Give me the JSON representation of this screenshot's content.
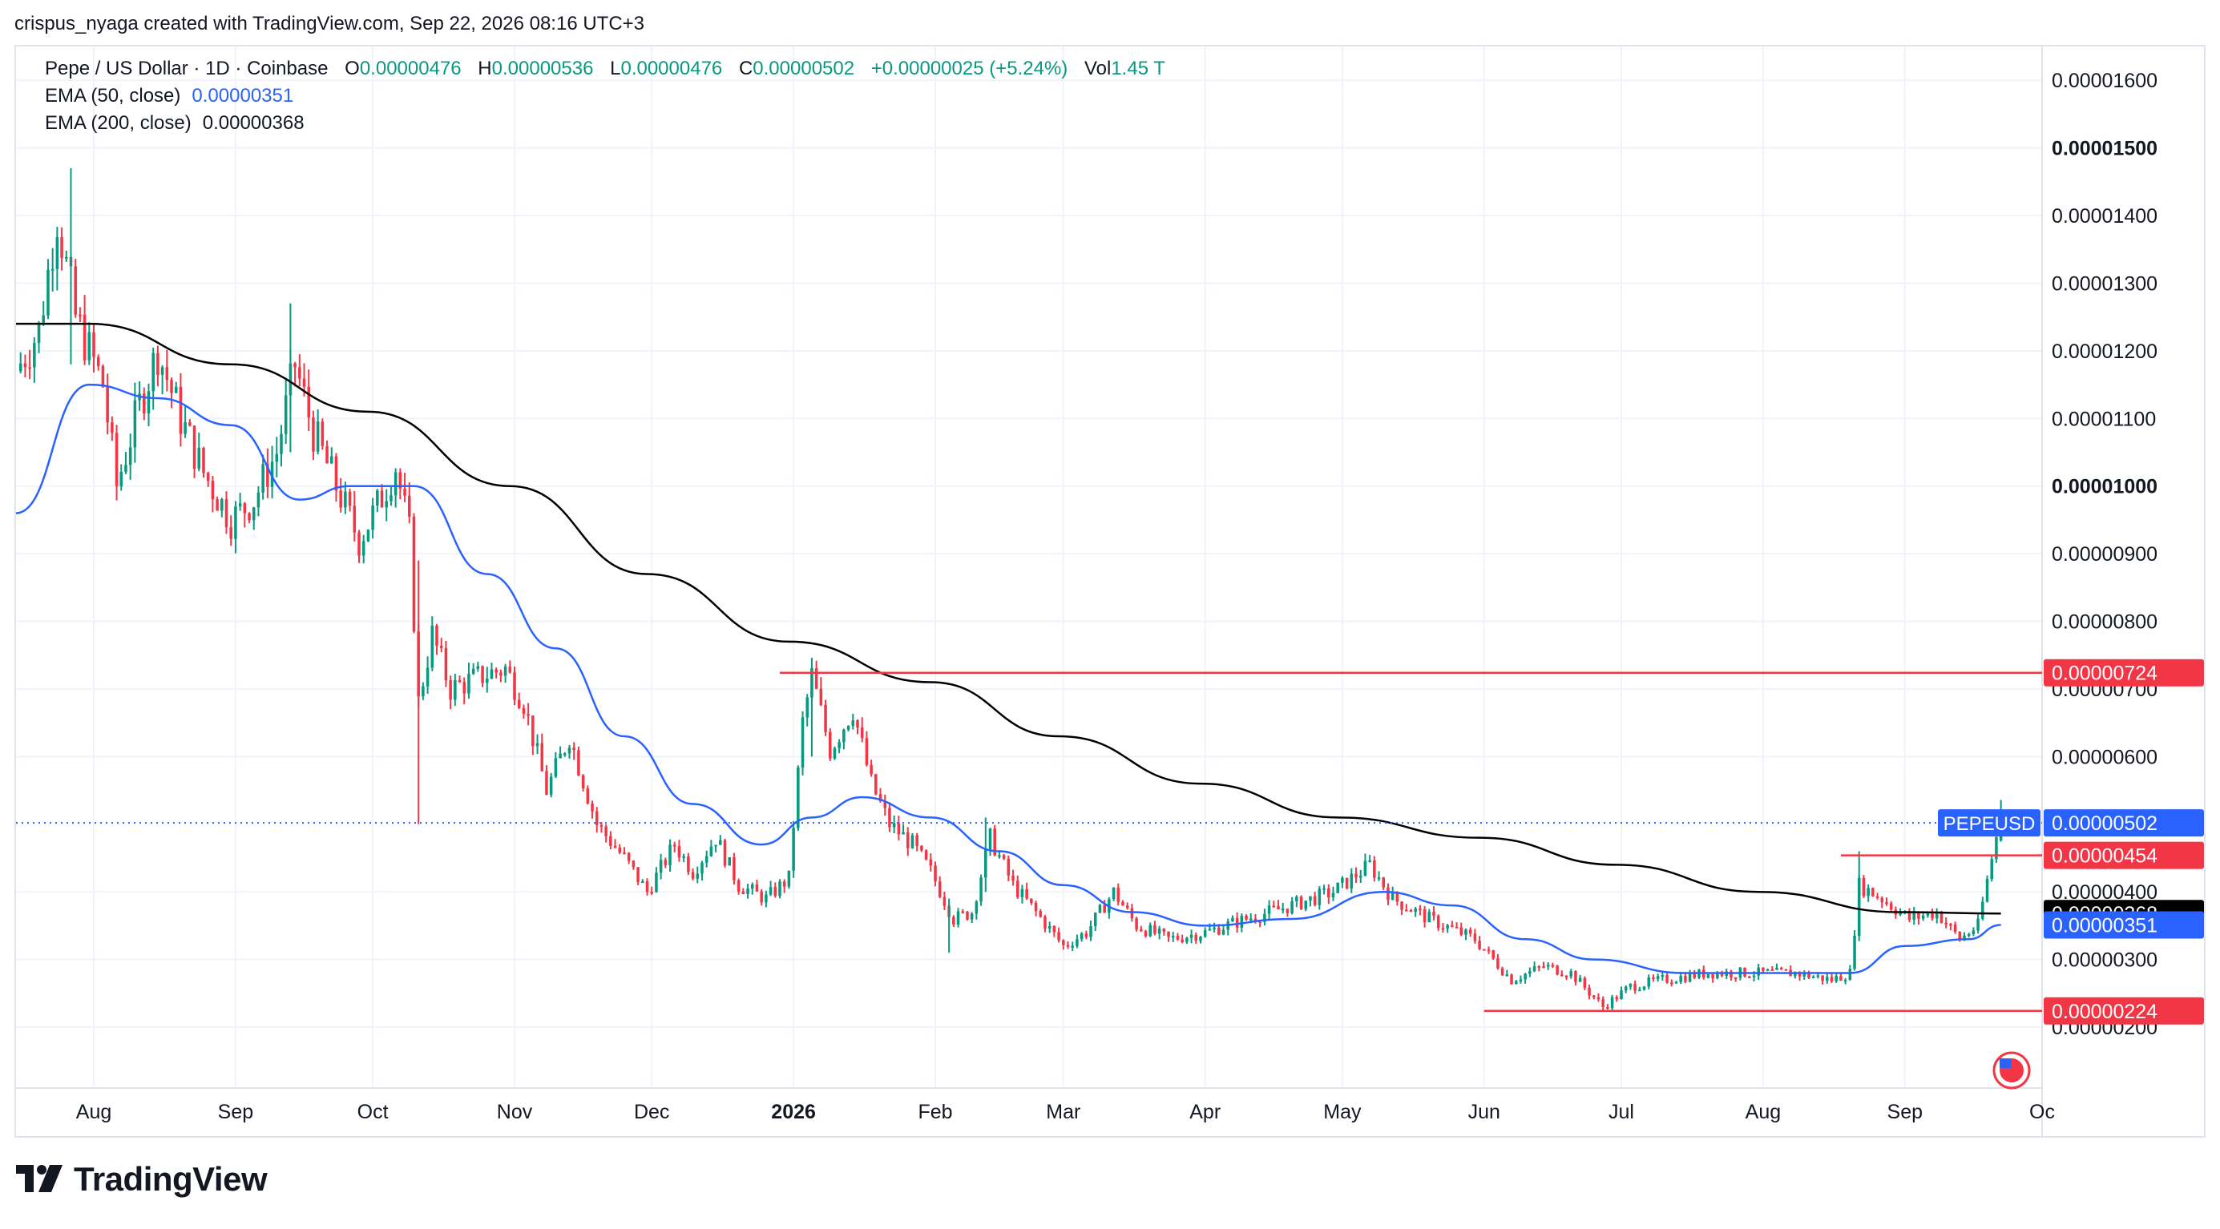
{
  "header": {
    "caption": "crispus_nyaga created with TradingView.com, Sep 22, 2026 08:16 UTC+3"
  },
  "legend": {
    "symbol": "Pepe / US Dollar · 1D · Coinbase",
    "o_label": "O",
    "o_value": "0.00000476",
    "h_label": "H",
    "h_value": "0.00000536",
    "l_label": "L",
    "l_value": "0.00000476",
    "c_label": "C",
    "c_value": "0.00000502",
    "change": "+0.00000025 (+5.24%)",
    "vol_label": "Vol",
    "vol_value": "1.45 T",
    "ema50_label": "EMA (50, close)",
    "ema50_value": "0.00000351",
    "ema200_label": "EMA (200, close)",
    "ema200_value": "0.00000368"
  },
  "footer": {
    "logo_text": "TradingView",
    "logo_icon": "tradingview-logo-icon",
    "flag_icon": "us-flag-icon"
  },
  "colors": {
    "up": "#089981",
    "down": "#f23645",
    "ema50": "#2962ff",
    "ema200": "#000000",
    "level_line": "#f23645",
    "grid": "#f0f3fa",
    "price_line": "#2962ff"
  },
  "chart_data": {
    "type": "candlestick",
    "symbol": "PEPEUSD",
    "x_range": [
      "2025-07-15",
      "2026-10-01"
    ],
    "y_range": [
      1.1e-06,
      1.65e-05
    ],
    "grid": true,
    "y_ticks": [
      {
        "value": 1.6e-05,
        "label": "0.00001600",
        "bold": false
      },
      {
        "value": 1.5e-05,
        "label": "0.00001500",
        "bold": true
      },
      {
        "value": 1.4e-05,
        "label": "0.00001400",
        "bold": false
      },
      {
        "value": 1.3e-05,
        "label": "0.00001300",
        "bold": false
      },
      {
        "value": 1.2e-05,
        "label": "0.00001200",
        "bold": false
      },
      {
        "value": 1.1e-05,
        "label": "0.00001100",
        "bold": false
      },
      {
        "value": 1e-05,
        "label": "0.00001000",
        "bold": true
      },
      {
        "value": 9e-06,
        "label": "0.00000900",
        "bold": false
      },
      {
        "value": 8e-06,
        "label": "0.00000800",
        "bold": false
      },
      {
        "value": 7e-06,
        "label": "0.00000700",
        "bold": false
      },
      {
        "value": 6e-06,
        "label": "0.00000600",
        "bold": false
      },
      {
        "value": 4e-06,
        "label": "0.00000400",
        "bold": false
      },
      {
        "value": 3e-06,
        "label": "0.00000300",
        "bold": false
      },
      {
        "value": 2e-06,
        "label": "0.00000200",
        "bold": false
      }
    ],
    "x_ticks": [
      {
        "date": "2025-08-01",
        "label": "Aug",
        "bold": false
      },
      {
        "date": "2025-09-01",
        "label": "Sep",
        "bold": false
      },
      {
        "date": "2025-10-01",
        "label": "Oct",
        "bold": false
      },
      {
        "date": "2025-11-01",
        "label": "Nov",
        "bold": false
      },
      {
        "date": "2025-12-01",
        "label": "Dec",
        "bold": false
      },
      {
        "date": "2026-01-01",
        "label": "2026",
        "bold": true
      },
      {
        "date": "2026-02-01",
        "label": "Feb",
        "bold": false
      },
      {
        "date": "2026-03-01",
        "label": "Mar",
        "bold": false
      },
      {
        "date": "2026-04-01",
        "label": "Apr",
        "bold": false
      },
      {
        "date": "2026-05-01",
        "label": "May",
        "bold": false
      },
      {
        "date": "2026-06-01",
        "label": "Jun",
        "bold": false
      },
      {
        "date": "2026-07-01",
        "label": "Jul",
        "bold": false
      },
      {
        "date": "2026-08-01",
        "label": "Aug",
        "bold": false
      },
      {
        "date": "2026-09-01",
        "label": "Sep",
        "bold": false
      },
      {
        "date": "2026-10-01",
        "label": "Oc",
        "bold": false
      }
    ],
    "close_path": [
      [
        "2025-07-15",
        1.17e-05
      ],
      [
        "2025-07-20",
        1.23e-05
      ],
      [
        "2025-07-24",
        1.4e-05
      ],
      [
        "2025-07-28",
        1.25e-05
      ],
      [
        "2025-08-03",
        1.15e-05
      ],
      [
        "2025-08-06",
        1e-05
      ],
      [
        "2025-08-11",
        1.12e-05
      ],
      [
        "2025-08-15",
        1.2e-05
      ],
      [
        "2025-08-20",
        1.1e-05
      ],
      [
        "2025-08-25",
        1.02e-05
      ],
      [
        "2025-08-31",
        9.5e-06
      ],
      [
        "2025-09-05",
        9.8e-06
      ],
      [
        "2025-09-10",
        1.05e-05
      ],
      [
        "2025-09-14",
        1.18e-05
      ],
      [
        "2025-09-18",
        1.08e-05
      ],
      [
        "2025-09-23",
        1e-05
      ],
      [
        "2025-09-28",
        9.2e-06
      ],
      [
        "2025-10-02",
        9.7e-06
      ],
      [
        "2025-10-06",
        1.03e-05
      ],
      [
        "2025-10-09",
        9.3e-06
      ],
      [
        "2025-10-11",
        6.8e-06
      ],
      [
        "2025-10-14",
        7.8e-06
      ],
      [
        "2025-10-18",
        7e-06
      ],
      [
        "2025-10-25",
        7.2e-06
      ],
      [
        "2025-10-30",
        7.3e-06
      ],
      [
        "2025-11-03",
        6.8e-06
      ],
      [
        "2025-11-08",
        5.5e-06
      ],
      [
        "2025-11-13",
        6.3e-06
      ],
      [
        "2025-11-19",
        5e-06
      ],
      [
        "2025-11-25",
        4.5e-06
      ],
      [
        "2025-11-30",
        4e-06
      ],
      [
        "2025-12-06",
        4.7e-06
      ],
      [
        "2025-12-10",
        4.3e-06
      ],
      [
        "2025-12-15",
        4.8e-06
      ],
      [
        "2025-12-20",
        4.1e-06
      ],
      [
        "2025-12-26",
        3.9e-06
      ],
      [
        "2025-12-31",
        4.2e-06
      ],
      [
        "2026-01-01",
        5e-06
      ],
      [
        "2026-01-03",
        6.5e-06
      ],
      [
        "2026-01-05",
        7.2e-06
      ],
      [
        "2026-01-09",
        6.1e-06
      ],
      [
        "2026-01-14",
        6.7e-06
      ],
      [
        "2026-01-18",
        5.6e-06
      ],
      [
        "2026-01-22",
        5e-06
      ],
      [
        "2026-01-27",
        4.7e-06
      ],
      [
        "2026-01-31",
        4.3e-06
      ],
      [
        "2026-02-05",
        3.6e-06
      ],
      [
        "2026-02-09",
        3.7e-06
      ],
      [
        "2026-02-13",
        4.8e-06
      ],
      [
        "2026-02-18",
        4.1e-06
      ],
      [
        "2026-02-23",
        3.7e-06
      ],
      [
        "2026-03-01",
        3.2e-06
      ],
      [
        "2026-03-06",
        3.4e-06
      ],
      [
        "2026-03-12",
        4e-06
      ],
      [
        "2026-03-17",
        3.5e-06
      ],
      [
        "2026-03-24",
        3.3e-06
      ],
      [
        "2026-04-01",
        3.4e-06
      ],
      [
        "2026-04-10",
        3.6e-06
      ],
      [
        "2026-04-20",
        3.8e-06
      ],
      [
        "2026-04-29",
        4e-06
      ],
      [
        "2026-05-07",
        4.4e-06
      ],
      [
        "2026-05-12",
        3.9e-06
      ],
      [
        "2026-05-20",
        3.6e-06
      ],
      [
        "2026-05-30",
        3.3e-06
      ],
      [
        "2026-06-07",
        2.7e-06
      ],
      [
        "2026-06-14",
        2.9e-06
      ],
      [
        "2026-06-20",
        2.8e-06
      ],
      [
        "2026-06-27",
        2.3e-06
      ],
      [
        "2026-07-03",
        2.6e-06
      ],
      [
        "2026-07-10",
        2.7e-06
      ],
      [
        "2026-07-20",
        2.8e-06
      ],
      [
        "2026-07-30",
        2.8e-06
      ],
      [
        "2026-08-08",
        2.8e-06
      ],
      [
        "2026-08-16",
        2.7e-06
      ],
      [
        "2026-08-20",
        2.8e-06
      ],
      [
        "2026-08-22",
        4.1e-06
      ],
      [
        "2026-08-27",
        3.9e-06
      ],
      [
        "2026-09-02",
        3.6e-06
      ],
      [
        "2026-09-08",
        3.7e-06
      ],
      [
        "2026-09-13",
        3.3e-06
      ],
      [
        "2026-09-17",
        3.5e-06
      ],
      [
        "2026-09-20",
        4.5e-06
      ],
      [
        "2026-09-21",
        4.8e-06
      ],
      [
        "2026-09-22",
        5.02e-06
      ]
    ],
    "spikes": [
      {
        "date": "2025-07-27",
        "high": 1.47e-05,
        "low": 1.18e-05
      },
      {
        "date": "2025-09-13",
        "high": 1.27e-05,
        "low": 1.05e-05
      },
      {
        "date": "2025-10-11",
        "high": 8.9e-06,
        "low": 5e-06
      },
      {
        "date": "2026-01-05",
        "high": 7.3e-06,
        "low": 6e-06
      },
      {
        "date": "2026-02-12",
        "high": 5.1e-06,
        "low": 4e-06
      },
      {
        "date": "2026-02-04",
        "high": 3.9e-06,
        "low": 3.1e-06
      },
      {
        "date": "2026-08-22",
        "high": 4.6e-06,
        "low": 3.7e-06
      },
      {
        "date": "2026-09-22",
        "high": 5.36e-06,
        "low": 4.76e-06
      }
    ],
    "ema50": [
      [
        "2025-07-15",
        9.6e-06
      ],
      [
        "2025-07-31",
        1.15e-05
      ],
      [
        "2025-08-15",
        1.13e-05
      ],
      [
        "2025-08-31",
        1.09e-05
      ],
      [
        "2025-09-15",
        9.8e-06
      ],
      [
        "2025-09-26",
        1e-05
      ],
      [
        "2025-10-10",
        1e-05
      ],
      [
        "2025-10-26",
        8.7e-06
      ],
      [
        "2025-11-10",
        7.6e-06
      ],
      [
        "2025-11-25",
        6.3e-06
      ],
      [
        "2025-12-10",
        5.3e-06
      ],
      [
        "2025-12-25",
        4.7e-06
      ],
      [
        "2026-01-05",
        5.1e-06
      ],
      [
        "2026-01-16",
        5.4e-06
      ],
      [
        "2026-01-31",
        5.1e-06
      ],
      [
        "2026-02-15",
        4.6e-06
      ],
      [
        "2026-03-01",
        4.1e-06
      ],
      [
        "2026-03-16",
        3.7e-06
      ],
      [
        "2026-04-01",
        3.5e-06
      ],
      [
        "2026-04-20",
        3.6e-06
      ],
      [
        "2026-05-10",
        4e-06
      ],
      [
        "2026-05-25",
        3.8e-06
      ],
      [
        "2026-06-10",
        3.3e-06
      ],
      [
        "2026-06-25",
        3e-06
      ],
      [
        "2026-07-15",
        2.8e-06
      ],
      [
        "2026-08-10",
        2.8e-06
      ],
      [
        "2026-08-20",
        2.8e-06
      ],
      [
        "2026-09-01",
        3.2e-06
      ],
      [
        "2026-09-15",
        3.3e-06
      ],
      [
        "2026-09-22",
        3.51e-06
      ]
    ],
    "ema200": [
      [
        "2025-07-15",
        1.24e-05
      ],
      [
        "2025-07-31",
        1.24e-05
      ],
      [
        "2025-08-31",
        1.18e-05
      ],
      [
        "2025-09-30",
        1.11e-05
      ],
      [
        "2025-10-31",
        1e-05
      ],
      [
        "2025-11-30",
        8.7e-06
      ],
      [
        "2025-12-31",
        7.7e-06
      ],
      [
        "2026-01-31",
        7.1e-06
      ],
      [
        "2026-02-28",
        6.3e-06
      ],
      [
        "2026-03-31",
        5.6e-06
      ],
      [
        "2026-04-30",
        5.1e-06
      ],
      [
        "2026-05-31",
        4.8e-06
      ],
      [
        "2026-06-30",
        4.4e-06
      ],
      [
        "2026-07-31",
        4e-06
      ],
      [
        "2026-08-31",
        3.7e-06
      ],
      [
        "2026-09-22",
        3.68e-06
      ]
    ],
    "horizontal_levels": [
      {
        "value": 7.24e-06,
        "label": "0.00000724",
        "start": "2025-12-29"
      },
      {
        "value": 4.54e-06,
        "label": "0.00000454",
        "start": "2026-08-18"
      },
      {
        "value": 2.24e-06,
        "label": "0.00000224",
        "start": "2026-06-01"
      }
    ],
    "last_price": {
      "value": 5.02e-06,
      "label": "0.00000502",
      "tag": "PEPEUSD"
    },
    "ema_tags": [
      {
        "name": "EMA (200, close)",
        "value": 3.68e-06,
        "label": "0.00000368"
      },
      {
        "name": "EMA (50, close)",
        "value": 3.51e-06,
        "label": "0.00000351"
      }
    ]
  }
}
